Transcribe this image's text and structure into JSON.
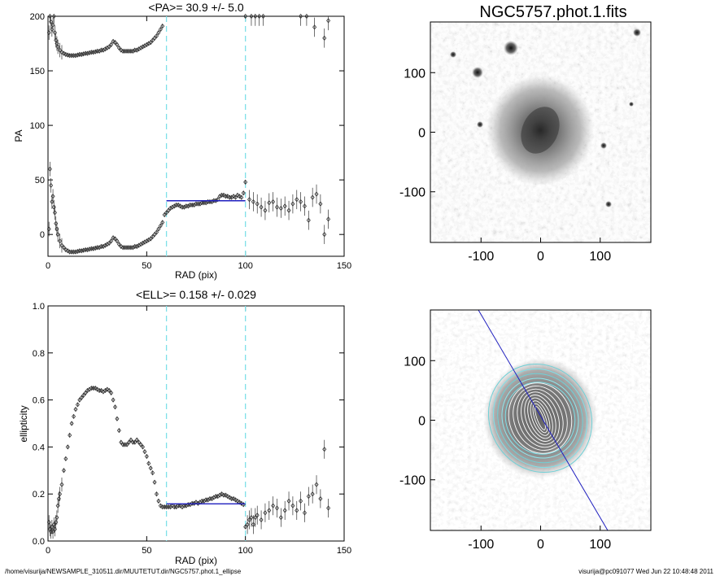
{
  "footer": {
    "path": "/home/visurija/NEWSAMPLE_310511.dir/MUUTETUT.dir/NGC5757.phot.1_ellipse",
    "user_time": "visurija@pc091077  Wed Jun 22 10:48:48 2011"
  },
  "colors": {
    "fit_line": "#1f1fbf",
    "range_marker": "#7fe0e8",
    "markers": "#333333"
  },
  "chart_data": [
    {
      "type": "scatter",
      "name": "pa-plot",
      "title": "<PA>=  30.9 +/-   5.0",
      "xlabel": "RAD (pix)",
      "ylabel": "PA",
      "xlim": [
        0,
        150
      ],
      "ylim": [
        -20,
        200
      ],
      "xticks": [
        "0",
        "50",
        "100",
        "150"
      ],
      "yticks": [
        "0",
        "50",
        "100",
        "150",
        "200"
      ],
      "xtick_values": [
        0,
        50,
        100,
        150
      ],
      "ytick_values": [
        0,
        50,
        100,
        150,
        200
      ],
      "range_markers": [
        60,
        100
      ],
      "fit": {
        "value": 30.9,
        "x_range": [
          60,
          100
        ]
      },
      "series": [
        {
          "marker": "diamond",
          "x": [
            0.5,
            1,
            1.5,
            2,
            2.5,
            3,
            3.5,
            4,
            4.5,
            5,
            6,
            7,
            8,
            9,
            10,
            11,
            12,
            13,
            14,
            15,
            16,
            17,
            18,
            19,
            20,
            21,
            22,
            23,
            24,
            25,
            26,
            27,
            28,
            29,
            30,
            31,
            32,
            33,
            34,
            35,
            36,
            37,
            38,
            39,
            40,
            41,
            42,
            43,
            44,
            45,
            46,
            47,
            48,
            49,
            50,
            51,
            52,
            53,
            54,
            55,
            56,
            57,
            58
          ],
          "y": [
            185,
            200,
            195,
            188,
            192,
            200,
            185,
            178,
            175,
            172,
            169,
            167,
            166,
            165,
            164.5,
            164,
            164,
            164,
            164,
            164.5,
            165,
            165,
            165.5,
            166,
            166,
            166.5,
            167,
            167,
            167.5,
            168,
            168,
            169,
            169,
            170,
            171,
            172,
            174,
            177,
            176,
            174,
            171,
            169,
            168,
            168,
            168,
            168,
            168,
            168,
            169,
            169,
            170,
            171,
            172,
            173,
            174,
            175,
            176,
            178,
            180,
            182,
            185,
            188,
            191
          ]
        },
        {
          "marker": "diamond",
          "x": [
            0.5,
            1,
            1.5,
            2,
            2.5,
            3,
            3.5,
            4,
            4.5,
            5,
            6,
            7,
            8,
            9,
            10,
            11,
            12,
            13,
            14,
            15,
            16,
            17,
            18,
            19,
            20,
            21,
            22,
            23,
            24,
            25,
            26,
            27,
            28,
            29,
            30,
            31,
            32,
            33,
            34,
            35,
            36,
            37,
            38,
            39,
            40,
            41,
            42,
            43,
            44,
            45,
            46,
            47,
            48,
            49,
            50,
            51,
            52,
            53,
            54,
            55,
            56,
            57,
            58
          ],
          "y": [
            5,
            60,
            45,
            30,
            35,
            25,
            20,
            10,
            5,
            0,
            -6,
            -10,
            -12,
            -14,
            -15,
            -16,
            -16,
            -16,
            -16,
            -15.5,
            -15,
            -15,
            -14.5,
            -14,
            -14,
            -13.5,
            -13,
            -13,
            -12.5,
            -12,
            -12,
            -11,
            -11,
            -10,
            -9,
            -8,
            -6,
            -3,
            -4,
            -6,
            -9,
            -11,
            -12,
            -12,
            -12,
            -12,
            -12,
            -12,
            -11,
            -11,
            -10,
            -9,
            -8,
            -7,
            -6,
            -5,
            -4,
            -2,
            0,
            2,
            5,
            8,
            11
          ]
        },
        {
          "marker": "diamond",
          "x": [
            59,
            60,
            61,
            62,
            63,
            64,
            65,
            66,
            67,
            68,
            69,
            70,
            71,
            72,
            73,
            74,
            75,
            76,
            77,
            78,
            79,
            80,
            81,
            82,
            83,
            84,
            85,
            86,
            87,
            88,
            89,
            90,
            91,
            92,
            93,
            94,
            95,
            96,
            97,
            98,
            99,
            100
          ],
          "y": [
            18,
            20,
            22,
            24,
            25,
            26,
            27,
            27,
            26,
            25,
            25,
            26,
            26,
            27,
            27,
            27,
            28,
            28,
            28,
            29,
            29,
            29,
            30,
            30,
            30,
            31,
            31,
            32,
            35,
            36,
            36,
            35,
            35,
            34,
            34,
            35,
            34,
            36,
            35,
            34,
            38,
            48
          ]
        },
        {
          "marker": "diamond",
          "x": [
            102,
            104,
            106,
            108,
            110,
            112,
            114,
            116,
            118,
            120,
            122,
            124,
            126,
            128,
            130,
            132,
            134,
            136,
            138,
            140,
            142,
            100,
            103,
            105,
            107,
            109
          ],
          "y": [
            32,
            30,
            28,
            25,
            22,
            29,
            30,
            25,
            24,
            26,
            22,
            28,
            32,
            30,
            26,
            13,
            34,
            37,
            28,
            0,
            14,
            200,
            200,
            200,
            200,
            200
          ]
        },
        {
          "marker": "diamond",
          "x": [
            128,
            131,
            135,
            140,
            142
          ],
          "y": [
            200,
            200,
            190,
            180,
            196
          ]
        }
      ]
    },
    {
      "type": "scatter",
      "name": "ellipticity-plot",
      "title": "<ELL>= 0.158 +/-  0.029",
      "xlabel": "RAD (pix)",
      "ylabel": "ellipticity",
      "xlim": [
        0,
        150
      ],
      "ylim": [
        0.0,
        1.0
      ],
      "xticks": [
        "0",
        "50",
        "100",
        "150"
      ],
      "yticks": [
        "0.0",
        "0.2",
        "0.4",
        "0.6",
        "0.8",
        "1.0"
      ],
      "xtick_values": [
        0,
        50,
        100,
        150
      ],
      "ytick_values": [
        0,
        0.2,
        0.4,
        0.6,
        0.8,
        1.0
      ],
      "range_markers": [
        60,
        100
      ],
      "fit": {
        "value": 0.158,
        "x_range": [
          60,
          100
        ]
      },
      "series": [
        {
          "marker": "diamond",
          "x": [
            0.5,
            1,
            1.5,
            2,
            2.5,
            3,
            3.5,
            4,
            4.5,
            5,
            5.5,
            6,
            7,
            8,
            9,
            10,
            11,
            12,
            13,
            14,
            15,
            16,
            17,
            18,
            19,
            20,
            21,
            22,
            23,
            24,
            25,
            26,
            27,
            28,
            29,
            30,
            31,
            32,
            33,
            34,
            35,
            36,
            37,
            38,
            39,
            40,
            41,
            42,
            43,
            44,
            45,
            46,
            47,
            48,
            49,
            50,
            51,
            52,
            53,
            54,
            55,
            56,
            57,
            58,
            59
          ],
          "y": [
            0.08,
            0.05,
            0.04,
            0.06,
            0.04,
            0.07,
            0.05,
            0.08,
            0.1,
            0.15,
            0.18,
            0.2,
            0.24,
            0.3,
            0.35,
            0.4,
            0.45,
            0.5,
            0.53,
            0.56,
            0.58,
            0.6,
            0.61,
            0.62,
            0.63,
            0.64,
            0.645,
            0.65,
            0.65,
            0.65,
            0.645,
            0.64,
            0.64,
            0.635,
            0.64,
            0.645,
            0.64,
            0.63,
            0.6,
            0.57,
            0.52,
            0.47,
            0.42,
            0.41,
            0.41,
            0.41,
            0.42,
            0.43,
            0.42,
            0.42,
            0.43,
            0.42,
            0.41,
            0.4,
            0.38,
            0.36,
            0.33,
            0.31,
            0.29,
            0.25,
            0.2,
            0.17,
            0.15,
            0.145,
            0.145
          ]
        },
        {
          "marker": "diamond",
          "x": [
            60,
            61,
            62,
            63,
            64,
            65,
            66,
            67,
            68,
            69,
            70,
            71,
            72,
            73,
            74,
            75,
            76,
            77,
            78,
            79,
            80,
            81,
            82,
            83,
            84,
            85,
            86,
            87,
            88,
            89,
            90,
            91,
            92,
            93,
            94,
            95,
            96,
            97,
            98,
            99
          ],
          "y": [
            0.145,
            0.145,
            0.145,
            0.15,
            0.145,
            0.145,
            0.15,
            0.15,
            0.145,
            0.15,
            0.15,
            0.155,
            0.155,
            0.16,
            0.16,
            0.165,
            0.16,
            0.165,
            0.17,
            0.17,
            0.175,
            0.175,
            0.18,
            0.18,
            0.185,
            0.19,
            0.19,
            0.195,
            0.2,
            0.195,
            0.195,
            0.19,
            0.185,
            0.18,
            0.18,
            0.175,
            0.17,
            0.165,
            0.16,
            0.155
          ]
        },
        {
          "marker": "diamond",
          "x": [
            100,
            101,
            102,
            103,
            104,
            105,
            106,
            108,
            110,
            112,
            114,
            116,
            118,
            120,
            122,
            124,
            126,
            128,
            130,
            132,
            134,
            136,
            138,
            140,
            142
          ],
          "y": [
            0.06,
            0.07,
            0.09,
            0.1,
            0.07,
            0.1,
            0.11,
            0.09,
            0.12,
            0.13,
            0.15,
            0.14,
            0.1,
            0.13,
            0.17,
            0.15,
            0.13,
            0.17,
            0.12,
            0.19,
            0.2,
            0.24,
            0.18,
            0.39,
            0.14
          ]
        }
      ]
    },
    {
      "type": "heatmap",
      "name": "galaxy-image",
      "title": "NGC5757.phot.1.fits",
      "xlim": [
        -185,
        185
      ],
      "ylim": [
        -185,
        185
      ],
      "xticks": [
        "-100",
        "0",
        "100"
      ],
      "yticks": [
        "-100",
        "0",
        "100"
      ],
      "xtick_values": [
        -100,
        0,
        100
      ],
      "ytick_values": [
        -100,
        0,
        100
      ]
    },
    {
      "type": "heatmap",
      "name": "contour-image",
      "title": "",
      "xlim": [
        -185,
        185
      ],
      "ylim": [
        -185,
        185
      ],
      "xticks": [
        "-100",
        "0",
        "100"
      ],
      "yticks": [
        "-100",
        "0",
        "100"
      ],
      "xtick_values": [
        -100,
        0,
        100
      ],
      "ytick_values": [
        -100,
        0,
        100
      ]
    }
  ]
}
